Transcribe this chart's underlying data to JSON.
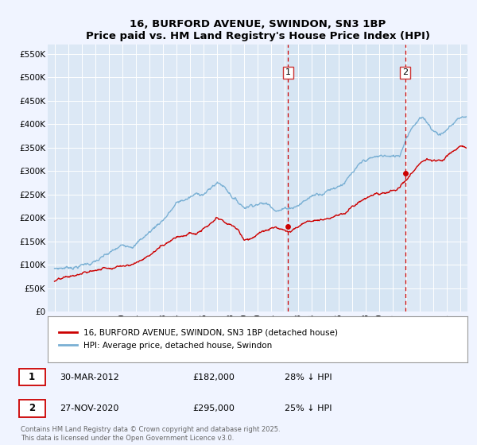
{
  "title": "16, BURFORD AVENUE, SWINDON, SN3 1BP",
  "subtitle": "Price paid vs. HM Land Registry's House Price Index (HPI)",
  "background_color": "#f0f4ff",
  "plot_bg_color": "#dce8f5",
  "ylabel_ticks": [
    "£0",
    "£50K",
    "£100K",
    "£150K",
    "£200K",
    "£250K",
    "£300K",
    "£350K",
    "£400K",
    "£450K",
    "£500K",
    "£550K"
  ],
  "ytick_values": [
    0,
    50000,
    100000,
    150000,
    200000,
    250000,
    300000,
    350000,
    400000,
    450000,
    500000,
    550000
  ],
  "xlim_start": 1994.5,
  "xlim_end": 2025.5,
  "ylim_min": 0,
  "ylim_max": 570000,
  "vline1_x": 2012.25,
  "vline2_x": 2020.9,
  "hpi_color": "#7ab0d4",
  "price_color": "#cc0000",
  "vline_color": "#cc0000",
  "shade_color": "#cde0f0",
  "legend_entry1": "16, BURFORD AVENUE, SWINDON, SN3 1BP (detached house)",
  "legend_entry2": "HPI: Average price, detached house, Swindon",
  "footer": "Contains HM Land Registry data © Crown copyright and database right 2025.\nThis data is licensed under the Open Government Licence v3.0.",
  "table_row1": [
    "1",
    "30-MAR-2012",
    "£182,000",
    "28% ↓ HPI"
  ],
  "table_row2": [
    "2",
    "27-NOV-2020",
    "£295,000",
    "25% ↓ HPI"
  ]
}
